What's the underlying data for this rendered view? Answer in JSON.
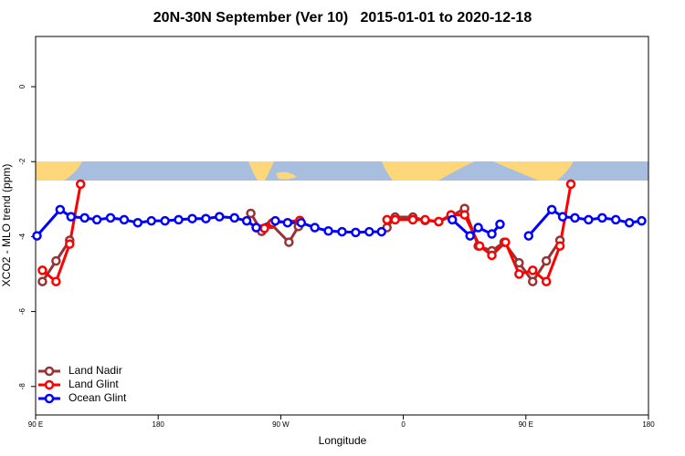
{
  "chart_data": {
    "type": "line",
    "title": "20N-30N September (Ver 10)   2015-01-01 to 2020-12-18",
    "xlabel": "Longitude",
    "ylabel": "XCO2 - MLO trend (ppm)",
    "xlim": [
      90,
      540
    ],
    "ylim": [
      -8.76,
      1.34
    ],
    "xticks": [
      {
        "value": 90,
        "label": "90 E"
      },
      180,
      {
        "value": 270,
        "label": "90 W"
      },
      {
        "value": 360,
        "label": "0"
      },
      {
        "value": 450,
        "label": "90 E"
      },
      {
        "value": 540,
        "label": "180"
      }
    ],
    "yticks": [
      0,
      -2,
      -4,
      -6,
      -8
    ],
    "legend": "bottom-left",
    "series": [
      {
        "name": "Land Nadir",
        "color": "#993333",
        "x": [
          95,
          105,
          115,
          null,
          248,
          256,
          263,
          276,
          283,
          null,
          348,
          354,
          367,
          376,
          386,
          395,
          405,
          415,
          425,
          434,
          445,
          455,
          465,
          475
        ],
        "values": [
          -5.2,
          -4.65,
          -4.1,
          null,
          -3.38,
          -3.86,
          -3.67,
          -4.15,
          -3.73,
          null,
          -3.76,
          -3.48,
          -3.48,
          -3.57,
          -3.6,
          -3.46,
          -3.25,
          -4.25,
          -4.38,
          -4.15,
          -4.7,
          -5.2,
          -4.65,
          -4.1
        ]
      },
      {
        "name": "Land Glint",
        "color": "#ff0000",
        "x": [
          95,
          105,
          115,
          123,
          null,
          252,
          258,
          264,
          284,
          null,
          348,
          354,
          367,
          376,
          386,
          395,
          405,
          416,
          425,
          435,
          445,
          455,
          465,
          475,
          483
        ],
        "values": [
          -4.9,
          -5.2,
          -4.2,
          -2.6,
          null,
          -3.76,
          -3.78,
          -3.63,
          -3.57,
          null,
          -3.55,
          -3.55,
          -3.55,
          -3.55,
          -3.6,
          -3.42,
          -3.42,
          -4.25,
          -4.5,
          -4.15,
          -5.0,
          -4.9,
          -5.2,
          -4.25,
          -2.6
        ]
      },
      {
        "name": "Ocean Glint",
        "color": "#0000ff",
        "x": [
          91,
          108,
          116,
          126,
          135,
          145,
          155,
          165,
          175,
          185,
          195,
          205,
          215,
          225,
          236,
          245,
          252,
          266,
          275,
          285,
          295,
          305,
          315,
          325,
          335,
          344,
          null,
          396,
          409,
          415,
          425,
          431,
          null,
          452,
          469,
          477,
          486,
          496,
          506,
          516,
          526,
          535
        ],
        "values": [
          -3.98,
          -3.28,
          -3.47,
          -3.5,
          -3.55,
          -3.5,
          -3.55,
          -3.63,
          -3.58,
          -3.58,
          -3.55,
          -3.52,
          -3.52,
          -3.47,
          -3.5,
          -3.58,
          -3.76,
          -3.58,
          -3.63,
          -3.63,
          -3.76,
          -3.85,
          -3.87,
          -3.89,
          -3.87,
          -3.87,
          null,
          -3.55,
          -3.98,
          -3.76,
          -3.93,
          -3.67,
          null,
          -3.98,
          -3.28,
          -3.47,
          -3.5,
          -3.55,
          -3.5,
          -3.55,
          -3.63,
          -3.58
        ]
      }
    ]
  }
}
